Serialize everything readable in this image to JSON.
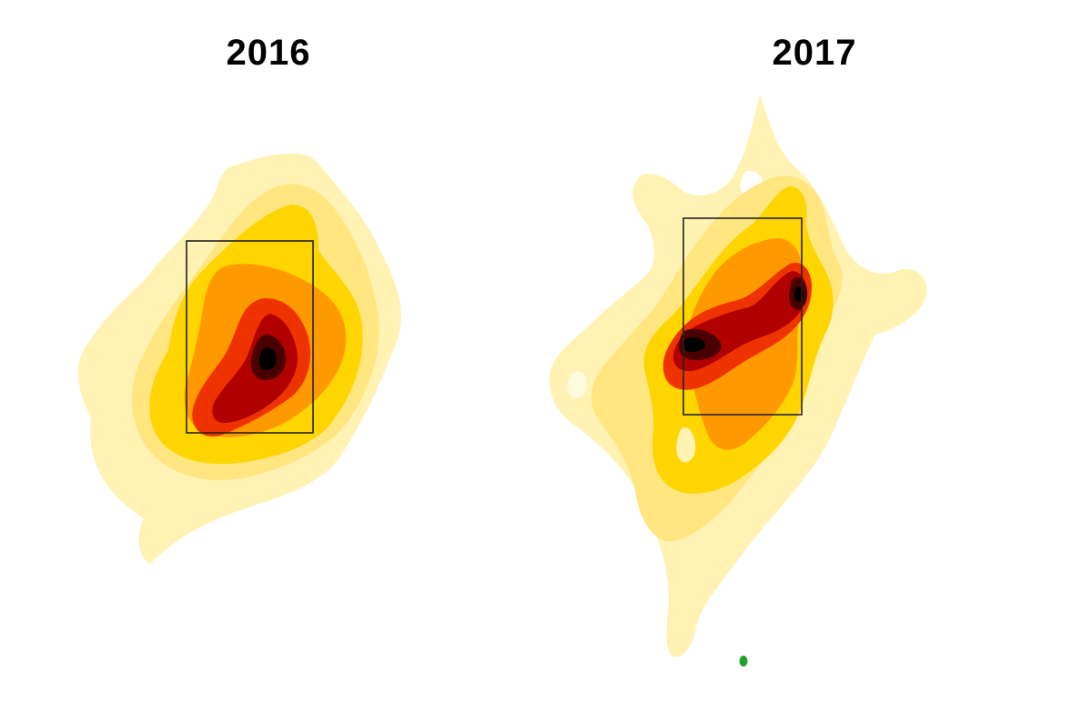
{
  "chart_data": [
    {
      "type": "heatmap",
      "title": "2016",
      "strike_zone": true,
      "palette": [
        "#fff2b3",
        "#ffe680",
        "#ffd500",
        "#ff9900",
        "#ee3300",
        "#b00000",
        "#000000"
      ],
      "hotspots": [
        {
          "level": 7,
          "label": "peak"
        }
      ]
    },
    {
      "type": "heatmap",
      "title": "2017",
      "strike_zone": true,
      "palette": [
        "#fff2b3",
        "#ffe680",
        "#ffd500",
        "#ff9900",
        "#ee3300",
        "#b00000",
        "#000000"
      ],
      "hotspots": [
        {
          "level": 7,
          "label": "peak-left"
        },
        {
          "level": 7,
          "label": "peak-right"
        }
      ],
      "marker_color": "#22a02a"
    }
  ]
}
